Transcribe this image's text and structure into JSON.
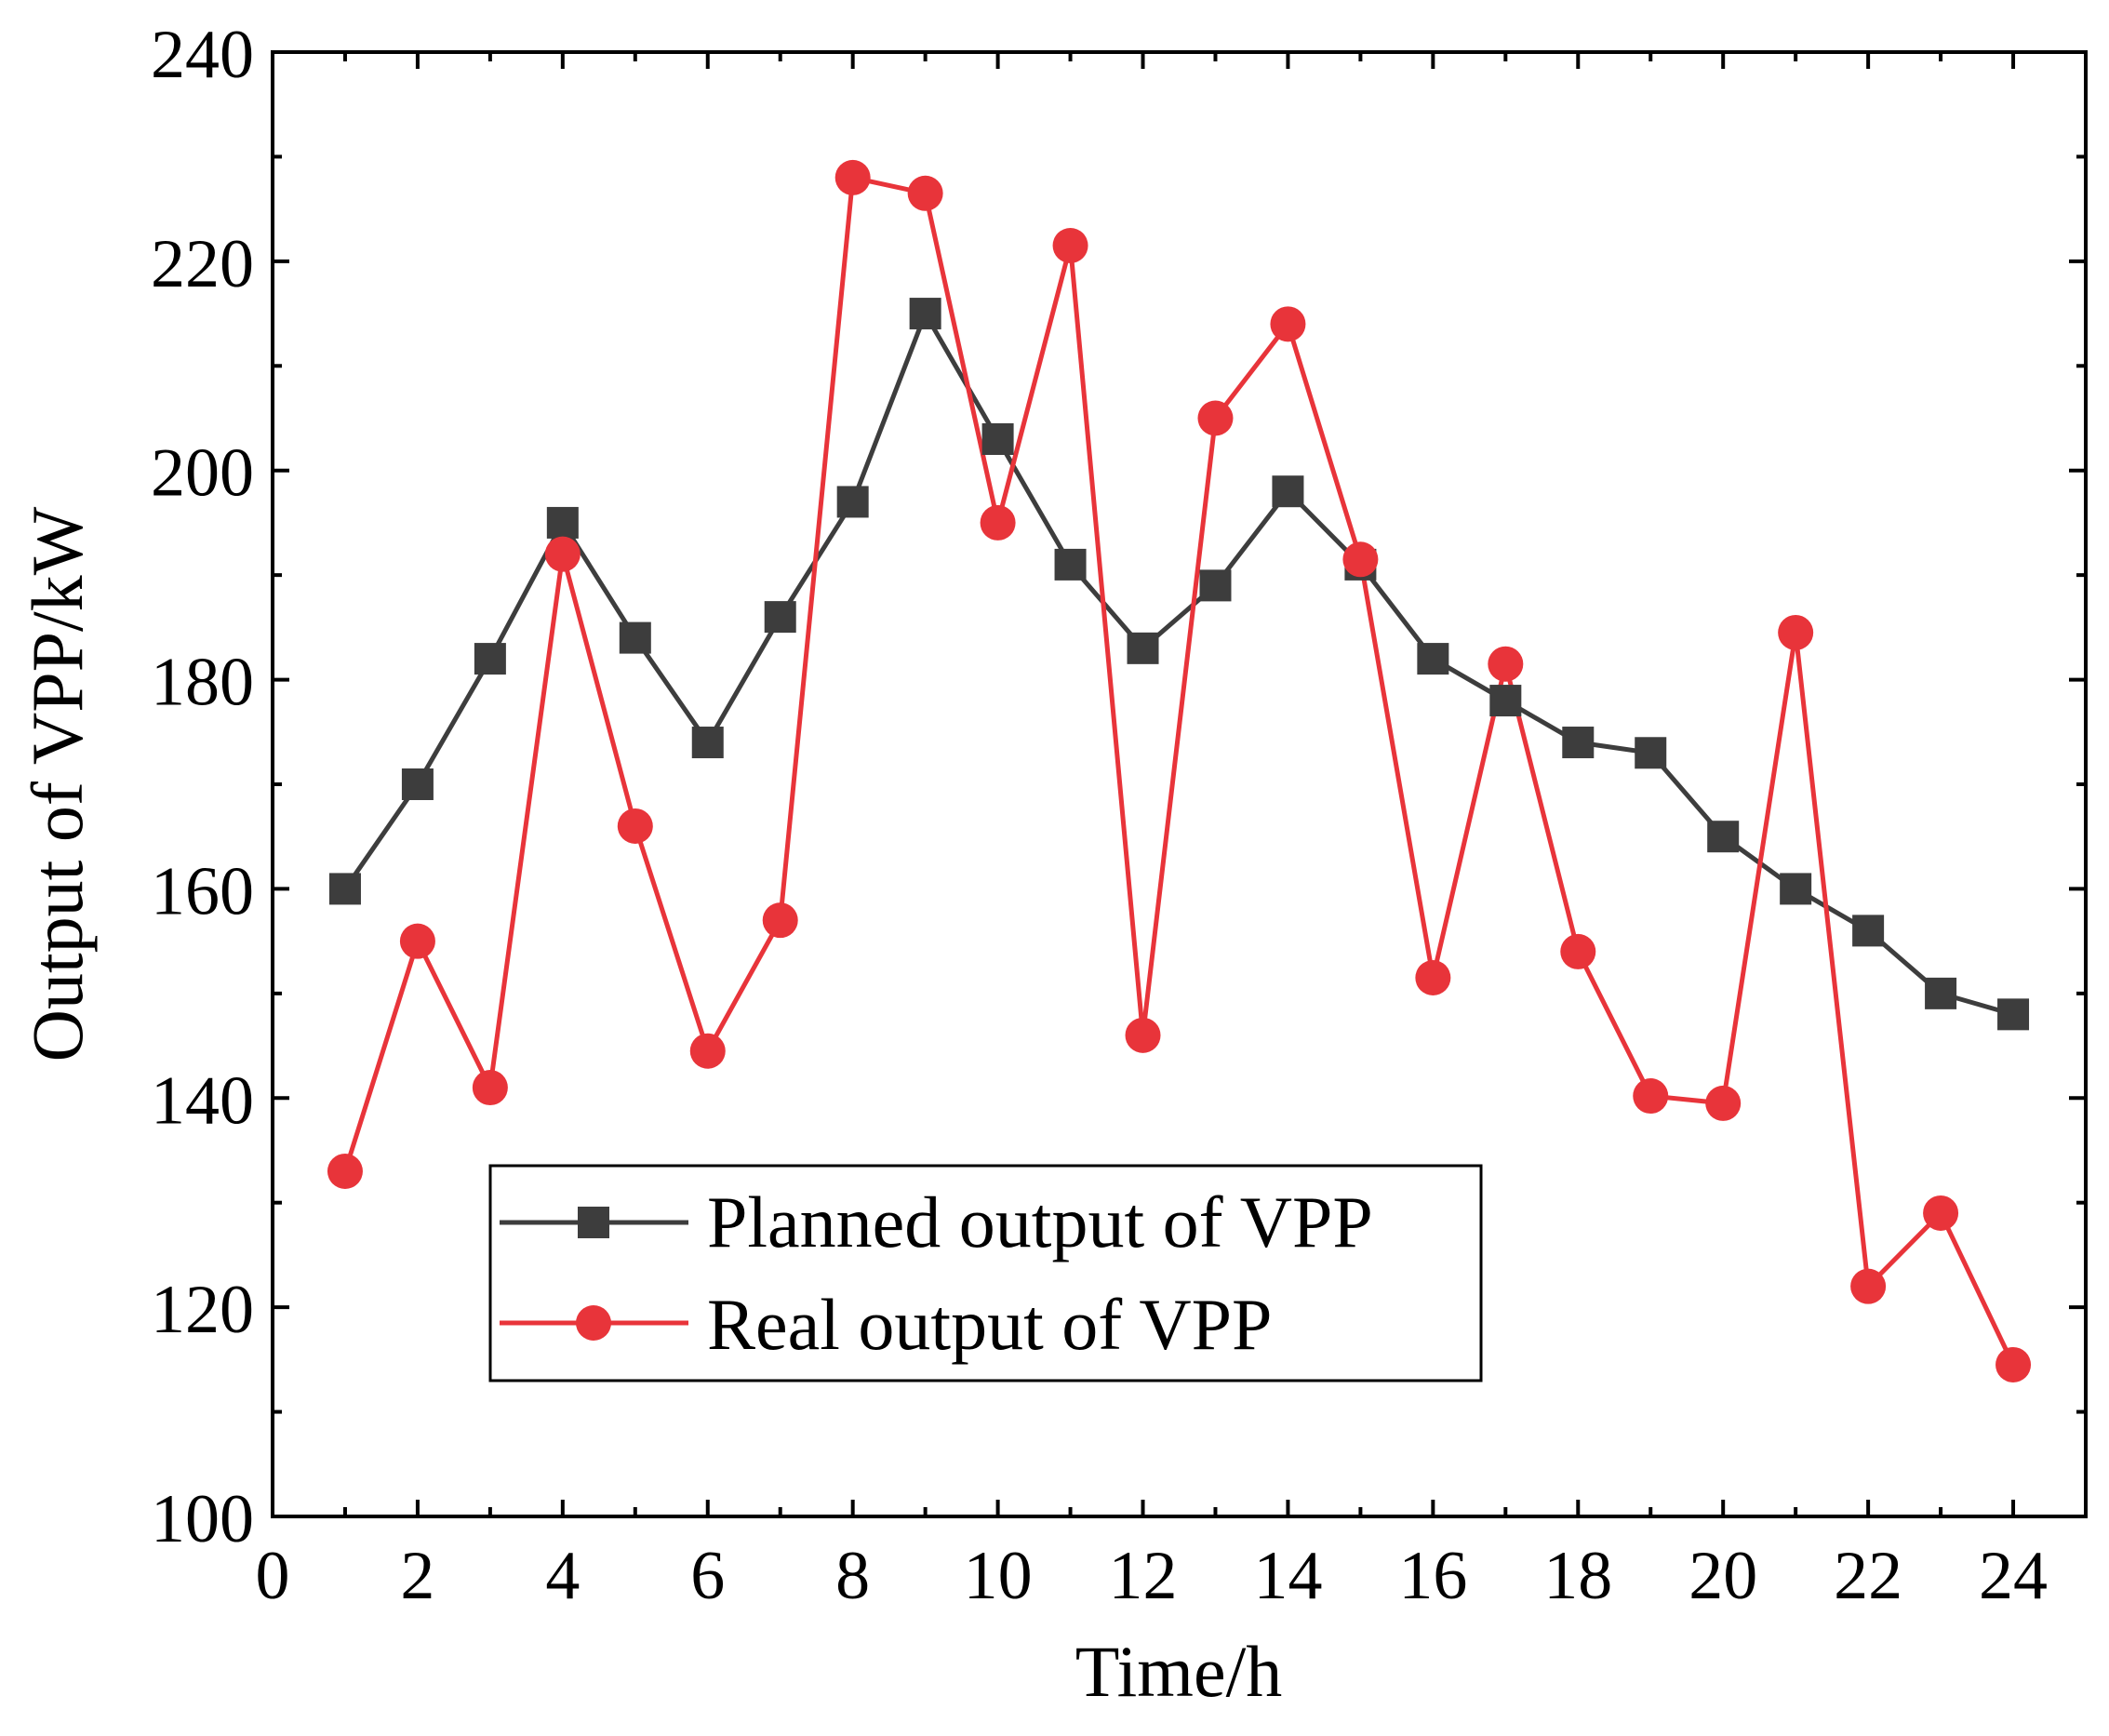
{
  "chart_data": {
    "type": "line",
    "title": "",
    "xlabel": "Time/h",
    "ylabel": "Output of VPP/kW",
    "xlim": [
      0,
      25
    ],
    "ylim": [
      100,
      240
    ],
    "x_ticks": [
      0,
      2,
      4,
      6,
      8,
      10,
      12,
      14,
      16,
      18,
      20,
      22,
      24
    ],
    "y_ticks": [
      100,
      120,
      140,
      160,
      180,
      200,
      220,
      240
    ],
    "legend_position": "bottom-left",
    "grid": false,
    "x": [
      1,
      2,
      3,
      4,
      5,
      6,
      7,
      8,
      9,
      10,
      11,
      12,
      13,
      14,
      15,
      16,
      17,
      18,
      19,
      20,
      21,
      22,
      23,
      24
    ],
    "series": [
      {
        "name": "Planned output of VPP",
        "color": "#3d3d3d",
        "marker": "square",
        "values": [
          160,
          170,
          182,
          195,
          184,
          174,
          186,
          197,
          215,
          203,
          191,
          183,
          189,
          198,
          191,
          182,
          178,
          174,
          173,
          165,
          160,
          156,
          150,
          148
        ]
      },
      {
        "name": "Real output of VPP",
        "color": "#e8343a",
        "marker": "circle",
        "values": [
          133,
          155,
          141,
          192,
          166,
          144.5,
          157,
          228,
          226.5,
          195,
          221.5,
          146,
          205,
          214,
          191.5,
          151.5,
          181.5,
          154,
          140.2,
          139.5,
          184.5,
          122,
          129,
          114.5
        ]
      }
    ]
  }
}
